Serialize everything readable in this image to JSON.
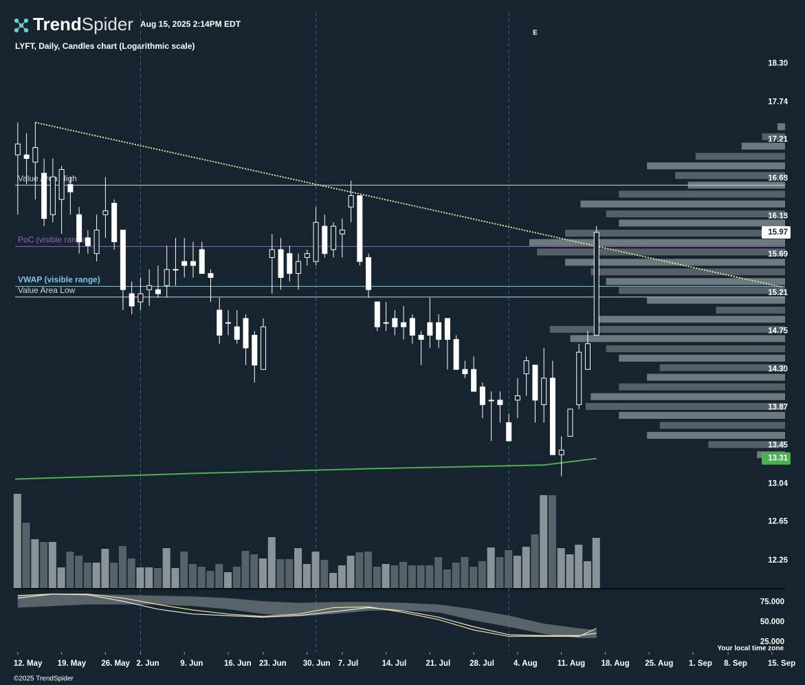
{
  "header": {
    "brand_bold": "Trend",
    "brand_light": "Spider",
    "timestamp": "Aug 15, 2025 2:14PM EDT",
    "footer": "©2025 TrendSpider",
    "timezone": "Your local time zone"
  },
  "chart_data": {
    "type": "candlestick",
    "title": "LYFT, Daily, Candles chart (Logarithmic scale)",
    "log_scale": true,
    "xlim": [
      -0.3,
      87.5
    ],
    "xticks": [
      {
        "value": 0,
        "label": "12. May"
      },
      {
        "value": 5,
        "label": "19. May"
      },
      {
        "value": 10,
        "label": "26. May"
      },
      {
        "value": 14,
        "label": "2. Jun"
      },
      {
        "value": 19,
        "label": "9. Jun"
      },
      {
        "value": 24,
        "label": "16. Jun"
      },
      {
        "value": 28,
        "label": "23. Jun"
      },
      {
        "value": 33,
        "label": "30. Jun"
      },
      {
        "value": 37,
        "label": "7. Jul"
      },
      {
        "value": 42,
        "label": "14. Jul"
      },
      {
        "value": 47,
        "label": "21. Jul"
      },
      {
        "value": 52,
        "label": "28. Jul"
      },
      {
        "value": 57,
        "label": "4. Aug"
      },
      {
        "value": 62,
        "label": "11. Aug"
      },
      {
        "value": 67,
        "label": "18. Aug"
      },
      {
        "value": 72,
        "label": "25. Aug"
      },
      {
        "value": 77,
        "label": "1. Sep"
      },
      {
        "value": 81,
        "label": "8. Sep"
      },
      {
        "value": 86,
        "label": "15. Sep"
      }
    ],
    "separators": [
      14,
      34,
      56
    ],
    "ylim": [
      11.99,
      18.63
    ],
    "yticks": [
      {
        "value": 18.3,
        "label": "18.30"
      },
      17.74,
      17.21,
      16.68,
      16.18,
      15.69,
      15.21,
      14.75,
      {
        "value": 14.3,
        "label": "14.30"
      },
      13.87,
      13.45,
      13.04,
      12.65,
      12.26
    ],
    "candles": [
      {
        "open": 17.0,
        "high": 17.45,
        "low": 16.2,
        "close": 17.15
      },
      {
        "open": 17.0,
        "high": 17.3,
        "low": 16.6,
        "close": 16.95
      },
      {
        "open": 16.9,
        "high": 17.45,
        "low": 16.4,
        "close": 17.1
      },
      {
        "open": 16.75,
        "high": 16.95,
        "low": 16.05,
        "close": 16.15
      },
      {
        "open": 16.2,
        "high": 16.95,
        "low": 16.1,
        "close": 16.7
      },
      {
        "open": 16.4,
        "high": 16.85,
        "low": 15.95,
        "close": 16.8
      },
      {
        "open": 16.6,
        "high": 16.7,
        "low": 16.2,
        "close": 16.5
      },
      {
        "open": 16.2,
        "high": 16.3,
        "low": 15.7,
        "close": 15.85
      },
      {
        "open": 15.9,
        "high": 16.0,
        "low": 15.7,
        "close": 15.8
      },
      {
        "open": 15.7,
        "high": 16.2,
        "low": 15.6,
        "close": 16.0
      },
      {
        "open": 16.2,
        "high": 16.7,
        "low": 15.9,
        "close": 16.25
      },
      {
        "open": 16.35,
        "high": 16.4,
        "low": 15.75,
        "close": 15.85
      },
      {
        "open": 16.0,
        "high": 16.0,
        "low": 15.0,
        "close": 15.25
      },
      {
        "open": 15.2,
        "high": 15.35,
        "low": 14.95,
        "close": 15.05
      },
      {
        "open": 15.1,
        "high": 15.4,
        "low": 15.0,
        "close": 15.2
      },
      {
        "open": 15.25,
        "high": 15.5,
        "low": 15.05,
        "close": 15.3
      },
      {
        "open": 15.25,
        "high": 15.55,
        "low": 15.15,
        "close": 15.2
      },
      {
        "open": 15.3,
        "high": 15.8,
        "low": 15.15,
        "close": 15.5
      },
      {
        "open": 15.5,
        "high": 15.9,
        "low": 15.3,
        "close": 15.5
      },
      {
        "open": 15.6,
        "high": 15.9,
        "low": 15.4,
        "close": 15.55
      },
      {
        "open": 15.6,
        "high": 15.85,
        "low": 15.4,
        "close": 15.55
      },
      {
        "open": 15.75,
        "high": 15.85,
        "low": 15.45,
        "close": 15.45
      },
      {
        "open": 15.45,
        "high": 15.5,
        "low": 15.1,
        "close": 15.4
      },
      {
        "open": 15.0,
        "high": 15.15,
        "low": 14.6,
        "close": 14.7
      },
      {
        "open": 14.85,
        "high": 15.0,
        "low": 14.7,
        "close": 14.85
      },
      {
        "open": 14.8,
        "high": 15.0,
        "low": 14.6,
        "close": 14.65
      },
      {
        "open": 14.9,
        "high": 14.95,
        "low": 14.35,
        "close": 14.55
      },
      {
        "open": 14.7,
        "high": 14.75,
        "low": 14.15,
        "close": 14.35
      },
      {
        "open": 14.3,
        "high": 14.9,
        "low": 14.3,
        "close": 14.8
      },
      {
        "open": 15.65,
        "high": 15.95,
        "low": 15.2,
        "close": 15.75
      },
      {
        "open": 15.75,
        "high": 15.9,
        "low": 15.25,
        "close": 15.4
      },
      {
        "open": 15.7,
        "high": 15.8,
        "low": 15.35,
        "close": 15.45
      },
      {
        "open": 15.45,
        "high": 15.7,
        "low": 15.25,
        "close": 15.6
      },
      {
        "open": 15.65,
        "high": 15.75,
        "low": 15.55,
        "close": 15.7
      },
      {
        "open": 15.6,
        "high": 16.3,
        "low": 15.55,
        "close": 16.1
      },
      {
        "open": 16.05,
        "high": 16.2,
        "low": 15.65,
        "close": 15.7
      },
      {
        "open": 15.75,
        "high": 16.1,
        "low": 15.65,
        "close": 16.05
      },
      {
        "open": 15.95,
        "high": 16.15,
        "low": 15.65,
        "close": 16.0
      },
      {
        "open": 16.3,
        "high": 16.65,
        "low": 16.1,
        "close": 16.45
      },
      {
        "open": 16.45,
        "high": 16.45,
        "low": 15.55,
        "close": 15.6
      },
      {
        "open": 15.65,
        "high": 15.7,
        "low": 15.15,
        "close": 15.25
      },
      {
        "open": 15.1,
        "high": 15.1,
        "low": 14.75,
        "close": 14.8
      },
      {
        "open": 14.85,
        "high": 15.1,
        "low": 14.75,
        "close": 14.85
      },
      {
        "open": 14.9,
        "high": 15.0,
        "low": 14.7,
        "close": 14.8
      },
      {
        "open": 14.85,
        "high": 15.05,
        "low": 14.65,
        "close": 14.8
      },
      {
        "open": 14.9,
        "high": 14.95,
        "low": 14.6,
        "close": 14.7
      },
      {
        "open": 14.7,
        "high": 14.75,
        "low": 14.35,
        "close": 14.65
      },
      {
        "open": 14.85,
        "high": 15.15,
        "low": 14.55,
        "close": 14.7
      },
      {
        "open": 14.85,
        "high": 14.95,
        "low": 14.55,
        "close": 14.65
      },
      {
        "open": 14.9,
        "high": 14.9,
        "low": 14.3,
        "close": 14.65
      },
      {
        "open": 14.65,
        "high": 14.7,
        "low": 14.3,
        "close": 14.3
      },
      {
        "open": 14.3,
        "high": 14.4,
        "low": 14.2,
        "close": 14.25
      },
      {
        "open": 14.3,
        "high": 14.45,
        "low": 14.05,
        "close": 14.05
      },
      {
        "open": 14.1,
        "high": 14.15,
        "low": 13.75,
        "close": 13.9
      },
      {
        "open": 13.95,
        "high": 14.05,
        "low": 13.5,
        "close": 13.95
      },
      {
        "open": 13.95,
        "high": 14.05,
        "low": 13.7,
        "close": 13.9
      },
      {
        "open": 13.7,
        "high": 13.8,
        "low": 13.5,
        "close": 13.5
      },
      {
        "open": 13.95,
        "high": 14.2,
        "low": 13.75,
        "close": 14.0
      },
      {
        "open": 14.25,
        "high": 14.45,
        "low": 14.0,
        "close": 14.4
      },
      {
        "open": 14.35,
        "high": 14.35,
        "low": 13.7,
        "close": 13.95
      },
      {
        "open": 13.9,
        "high": 14.55,
        "low": 13.7,
        "close": 14.2
      },
      {
        "open": 14.2,
        "high": 14.4,
        "low": 13.35,
        "close": 13.35
      },
      {
        "open": 13.35,
        "high": 13.55,
        "low": 13.12,
        "close": 13.4
      },
      {
        "open": 13.55,
        "high": 13.85,
        "low": 13.55,
        "close": 13.85
      },
      {
        "open": 13.9,
        "high": 14.6,
        "low": 13.85,
        "close": 14.5
      },
      {
        "open": 14.3,
        "high": 14.75,
        "low": 14.3,
        "close": 14.6
      },
      {
        "open": 14.7,
        "high": 16.05,
        "low": 14.7,
        "close": 15.97
      }
    ],
    "volume": [
      137,
      95,
      71,
      67,
      67,
      30,
      53,
      47,
      37,
      37,
      57,
      37,
      61,
      43,
      30,
      30,
      29,
      58,
      29,
      53,
      35,
      31,
      25,
      35,
      23,
      31,
      54,
      49,
      43,
      74,
      42,
      42,
      58,
      35,
      53,
      41,
      22,
      33,
      47,
      52,
      53,
      31,
      35,
      33,
      38,
      33,
      33,
      33,
      45,
      27,
      37,
      45,
      31,
      39,
      59,
      45,
      55,
      47,
      60,
      78,
      135,
      135,
      58,
      49,
      63,
      39,
      73
    ],
    "vlim": [
      0,
      140
    ],
    "levels": [
      {
        "name": "Value Area High",
        "value": 16.59,
        "color": "#cfd8dc"
      },
      {
        "name": "PoC (visible range)",
        "value": 15.79,
        "color": "#9c5fbf"
      },
      {
        "name": "VWAP (visible range)",
        "value": 15.29,
        "color": "#7fc6e0"
      },
      {
        "name": "Value Area Low",
        "value": 15.16,
        "color": "#cfd8dc"
      }
    ],
    "trendline": {
      "x": [
        2,
        87.2
      ],
      "values": [
        17.45,
        15.28
      ],
      "color": "#d4f0a0"
    },
    "moving_average": {
      "x": [
        -0.3,
        20,
        40,
        60,
        66
      ],
      "values": [
        13.09,
        13.15,
        13.2,
        13.24,
        13.31
      ],
      "color": "#4caf50"
    },
    "markers": [
      {
        "x": 59,
        "label": "E"
      }
    ],
    "profile": {
      "prices": [
        17.39,
        17.25,
        17.12,
        16.98,
        16.85,
        16.72,
        16.59,
        16.47,
        16.34,
        16.21,
        16.09,
        15.96,
        15.84,
        15.72,
        15.59,
        15.47,
        15.35,
        15.24,
        15.12,
        15.0,
        14.89,
        14.77,
        14.66,
        14.54,
        14.43,
        14.32,
        14.21,
        14.1,
        13.99,
        13.88,
        13.78,
        13.67,
        13.56,
        13.46,
        13.35
      ],
      "values": [
        3,
        9,
        17,
        35,
        54,
        43,
        38,
        65,
        80,
        70,
        65,
        86,
        100,
        97,
        86,
        76,
        70,
        65,
        54,
        27,
        73,
        92,
        84,
        70,
        65,
        49,
        54,
        65,
        76,
        78,
        65,
        49,
        54,
        30,
        11
      ],
      "lim": [
        0,
        100
      ]
    },
    "oscillator": {
      "ylim": [
        15,
        90
      ],
      "yticks": [
        {
          "value": 75,
          "label": "75.000"
        },
        {
          "value": 50,
          "label": "50.000"
        },
        {
          "value": 25,
          "label": "25.000"
        }
      ],
      "x": [
        0,
        4,
        8,
        12,
        16,
        20,
        24,
        28,
        32,
        36,
        40,
        44,
        48,
        52,
        56,
        60,
        64,
        66
      ],
      "band_upper": [
        84,
        86,
        85,
        84,
        83,
        82,
        80,
        76,
        74,
        75,
        75,
        74,
        72,
        66,
        58,
        48,
        42,
        40
      ],
      "band_lower": [
        68,
        70,
        72,
        72,
        72,
        70,
        66,
        60,
        57,
        60,
        64,
        65,
        62,
        52,
        44,
        35,
        30,
        30
      ],
      "series": [
        {
          "color": "#f3e08c",
          "values": [
            83,
            85,
            85,
            80,
            72,
            65,
            60,
            57,
            60,
            68,
            69,
            62,
            53,
            40,
            32,
            32,
            32,
            42
          ]
        },
        {
          "color": "#e6e6e6",
          "values": [
            80,
            85,
            84,
            76,
            66,
            60,
            58,
            56,
            58,
            63,
            68,
            64,
            56,
            44,
            34,
            33,
            33,
            36
          ]
        }
      ]
    }
  }
}
